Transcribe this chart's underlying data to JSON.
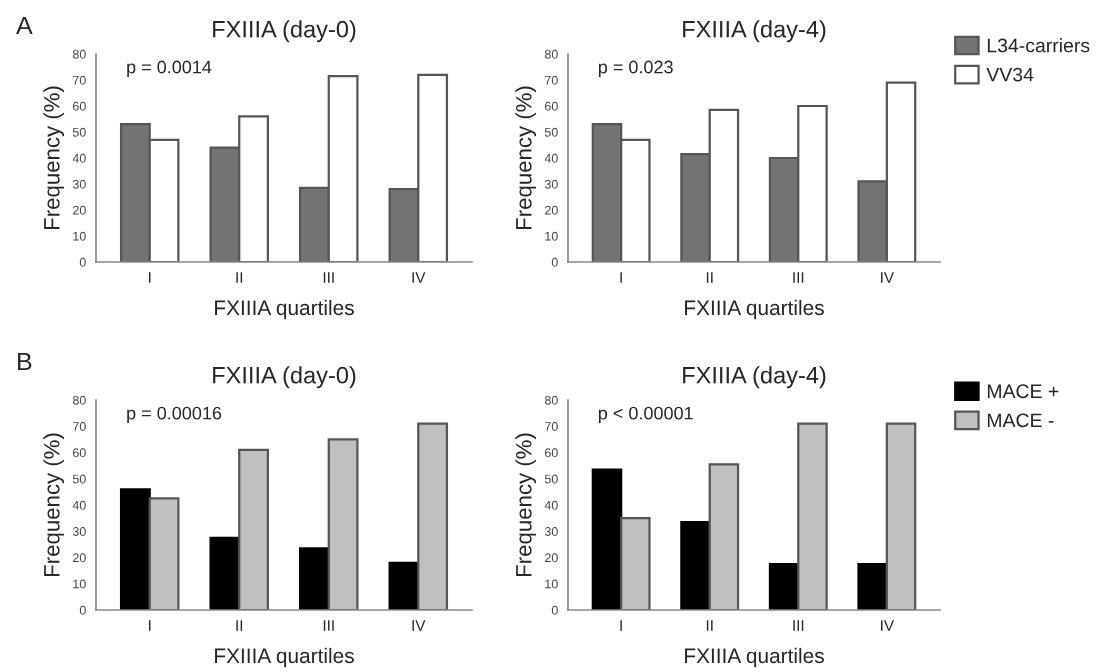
{
  "chart_data": [
    {
      "type": "bar",
      "title": "FXIIIA (day-0)",
      "xlabel": "FXIIIA quartiles",
      "ylabel": "Frequency (%)",
      "categories": [
        "I",
        "II",
        "III",
        "IV"
      ],
      "series": [
        {
          "color": "#737373",
          "values": [
            53,
            44,
            28.5,
            28
          ]
        },
        {
          "color": "#ffffff",
          "values": [
            47,
            56,
            71.5,
            72
          ]
        }
      ],
      "ylim": [
        0,
        80
      ],
      "yticks": [
        0,
        10,
        20,
        30,
        40,
        50,
        60,
        70,
        80
      ],
      "grid": false,
      "legend": false,
      "annotations": [
        "A",
        {
          "text": "p = 0.0014"
        }
      ]
    },
    {
      "type": "bar",
      "title": "FXIIIA (day-4)",
      "xlabel": "FXIIIA quartiles",
      "ylabel": "Frequency (%)",
      "categories": [
        "I",
        "II",
        "III",
        "IV"
      ],
      "series": [
        {
          "name": "L34-carriers",
          "color": "#737373",
          "values": [
            53,
            41.5,
            40,
            31
          ]
        },
        {
          "name": "VV34",
          "color": "#ffffff",
          "values": [
            47,
            58.5,
            60,
            69
          ]
        }
      ],
      "ylim": [
        0,
        80
      ],
      "yticks": [
        0,
        10,
        20,
        30,
        40,
        50,
        60,
        70,
        80
      ],
      "grid": false,
      "legend": "right",
      "annotations": [
        {
          "text": "p = 0.023"
        }
      ]
    },
    {
      "type": "bar",
      "title": "FXIIIA (day-0)",
      "xlabel": "FXIIIA quartiles",
      "ylabel": "Frequency (%)",
      "categories": [
        "I",
        "II",
        "III",
        "IV"
      ],
      "series": [
        {
          "color": "#000000",
          "values": [
            46,
            27.5,
            23.5,
            18
          ]
        },
        {
          "color": "#c0c0c0",
          "values": [
            42.5,
            61,
            65,
            71
          ]
        }
      ],
      "ylim": [
        0,
        80
      ],
      "yticks": [
        0,
        10,
        20,
        30,
        40,
        50,
        60,
        70,
        80
      ],
      "grid": false,
      "legend": false,
      "annotations": [
        "B",
        {
          "text": "p = 0.00016"
        }
      ]
    },
    {
      "type": "bar",
      "title": "FXIIIA (day-4)",
      "xlabel": "FXIIIA quartiles",
      "ylabel": "Frequency (%)",
      "categories": [
        "I",
        "II",
        "III",
        "IV"
      ],
      "series": [
        {
          "name": "MACE +",
          "color": "#000000",
          "values": [
            53.5,
            33.5,
            17.5,
            17.5
          ]
        },
        {
          "name": "MACE -",
          "color": "#c0c0c0",
          "values": [
            35,
            55.5,
            71,
            71
          ]
        }
      ],
      "ylim": [
        0,
        80
      ],
      "yticks": [
        0,
        10,
        20,
        30,
        40,
        50,
        60,
        70,
        80
      ],
      "grid": false,
      "legend": "right",
      "annotations": [
        {
          "text": "p < 0.00001"
        }
      ]
    }
  ]
}
